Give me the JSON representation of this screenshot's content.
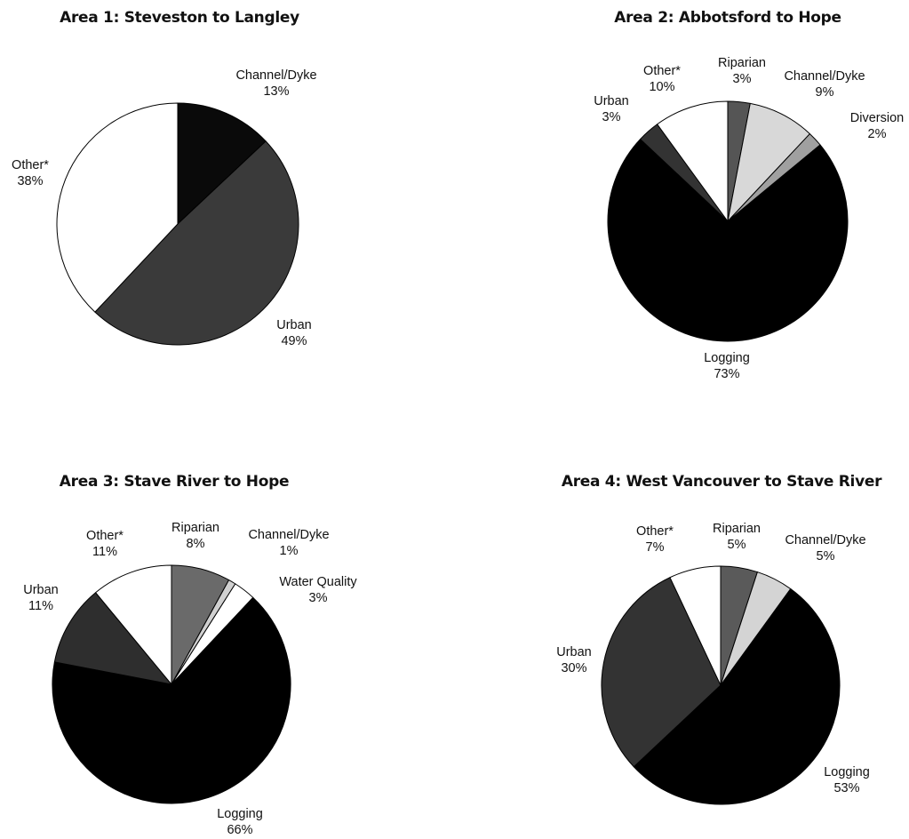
{
  "chart_data": [
    {
      "type": "pie",
      "title": "Area 1: Steveston to Langley",
      "slices": [
        {
          "label": "Channel/Dyke",
          "value": 13,
          "pct_label": "13%",
          "color": "#0a0a0a"
        },
        {
          "label": "Urban",
          "value": 49,
          "pct_label": "49%",
          "color": "#3a3a3a"
        },
        {
          "label": "Other*",
          "value": 38,
          "pct_label": "38%",
          "color": "#ffffff"
        }
      ]
    },
    {
      "type": "pie",
      "title": "Area 2: Abbotsford to Hope",
      "slices": [
        {
          "label": "Riparian",
          "value": 3,
          "pct_label": "3%",
          "color": "#555555"
        },
        {
          "label": "Channel/Dyke",
          "value": 9,
          "pct_label": "9%",
          "color": "#d8d8d8"
        },
        {
          "label": "Diversion",
          "value": 2,
          "pct_label": "2%",
          "color": "#a0a0a0"
        },
        {
          "label": "Logging",
          "value": 73,
          "pct_label": "73%",
          "color": "#000000"
        },
        {
          "label": "Urban",
          "value": 3,
          "pct_label": "3%",
          "color": "#333333"
        },
        {
          "label": "Other*",
          "value": 10,
          "pct_label": "10%",
          "color": "#ffffff"
        }
      ]
    },
    {
      "type": "pie",
      "title": "Area 3: Stave River to Hope",
      "slices": [
        {
          "label": "Riparian",
          "value": 8,
          "pct_label": "8%",
          "color": "#6a6a6a"
        },
        {
          "label": "Channel/Dyke",
          "value": 1,
          "pct_label": "1%",
          "color": "#d0d0d0"
        },
        {
          "label": "Water Quality",
          "value": 3,
          "pct_label": "3%",
          "color": "#ffffff"
        },
        {
          "label": "Logging",
          "value": 66,
          "pct_label": "66%",
          "color": "#000000"
        },
        {
          "label": "Urban",
          "value": 11,
          "pct_label": "11%",
          "color": "#2e2e2e"
        },
        {
          "label": "Other*",
          "value": 11,
          "pct_label": "11%",
          "color": "#ffffff"
        }
      ]
    },
    {
      "type": "pie",
      "title": "Area 4: West Vancouver to Stave River",
      "slices": [
        {
          "label": "Riparian",
          "value": 5,
          "pct_label": "5%",
          "color": "#5a5a5a"
        },
        {
          "label": "Channel/Dyke",
          "value": 5,
          "pct_label": "5%",
          "color": "#d4d4d4"
        },
        {
          "label": "Logging",
          "value": 53,
          "pct_label": "53%",
          "color": "#000000"
        },
        {
          "label": "Urban",
          "value": 30,
          "pct_label": "30%",
          "color": "#333333"
        },
        {
          "label": "Other*",
          "value": 7,
          "pct_label": "7%",
          "color": "#ffffff"
        }
      ]
    }
  ]
}
